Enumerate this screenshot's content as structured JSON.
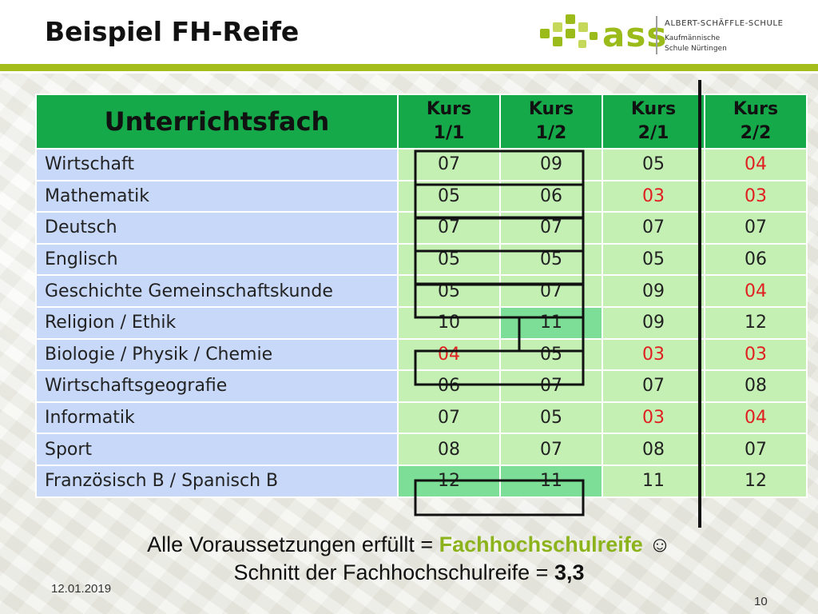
{
  "slide": {
    "title": "Beispiel FH-Reife",
    "date": "12.01.2019",
    "page_number": "10"
  },
  "logo": {
    "mark": "ass",
    "school_name": "ALBERT-SCHÄFFLE-SCHULE",
    "school_sub_1": "Kaufmännische",
    "school_sub_2": "Schule Nürtingen",
    "mark_color": "#9bbb1b"
  },
  "table": {
    "header": {
      "subject": "Unterrichtsfach",
      "k11_a": "Kurs",
      "k11_b": "1/1",
      "k12_a": "Kurs",
      "k12_b": "1/2",
      "k21_a": "Kurs",
      "k21_b": "2/1",
      "k22_a": "Kurs",
      "k22_b": "2/2"
    },
    "rows": [
      {
        "subject": "Wirtschaft",
        "g": [
          "07",
          "09",
          "05",
          "04"
        ]
      },
      {
        "subject": "Mathematik",
        "g": [
          "05",
          "06",
          "03",
          "03"
        ]
      },
      {
        "subject": "Deutsch",
        "g": [
          "07",
          "07",
          "07",
          "07"
        ]
      },
      {
        "subject": "Englisch",
        "g": [
          "05",
          "05",
          "05",
          "06"
        ]
      },
      {
        "subject": "Geschichte Gemeinschaftskunde",
        "g": [
          "05",
          "07",
          "09",
          "04"
        ]
      },
      {
        "subject": "Religion / Ethik",
        "g": [
          "10",
          "11",
          "09",
          "12"
        ]
      },
      {
        "subject": "Biologie / Physik / Chemie",
        "g": [
          "04",
          "05",
          "03",
          "03"
        ]
      },
      {
        "subject": "Wirtschaftsgeografie",
        "g": [
          "06",
          "07",
          "07",
          "08"
        ]
      },
      {
        "subject": "Informatik",
        "g": [
          "07",
          "05",
          "03",
          "04"
        ]
      },
      {
        "subject": "Sport",
        "g": [
          "08",
          "07",
          "08",
          "07"
        ]
      },
      {
        "subject": "Französisch B / Spanisch B",
        "g": [
          "12",
          "11",
          "11",
          "12"
        ]
      }
    ],
    "colors": {
      "header_green": "#15a94a",
      "subject_blue": "#c8d8f8",
      "grade_green": "#c4f0b4",
      "highlight_green": "#7ddf97",
      "failing_red": "#e02020"
    }
  },
  "summary": {
    "line1_prefix": "Alle Voraussetzungen erfüllt = ",
    "line1_result": "Fachhochschulreife",
    "line1_smiley": " ☺",
    "line2_prefix": "Schnitt der Fachhochschulreife = ",
    "line2_value": "3,3"
  }
}
